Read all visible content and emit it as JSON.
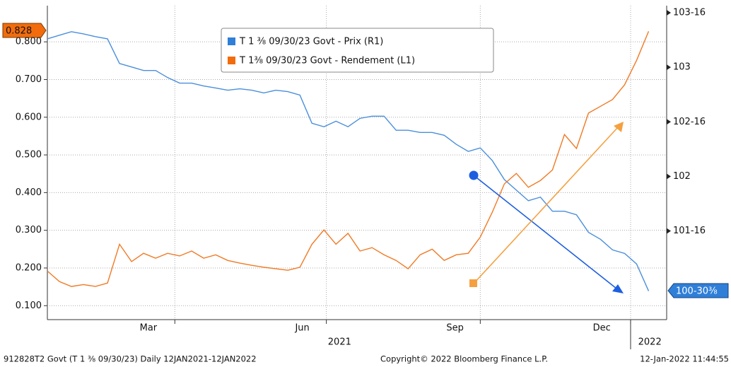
{
  "chart_data": {
    "type": "line",
    "legend": [
      "T 1 ⅜ 09/30/23 Govt - Prix (R1)",
      "T 1⅜ 09/30/23 Govt - Rendement (L1)"
    ],
    "series": [
      {
        "name": "T 1 ⅜ 09/30/23 Govt - Prix (R1)",
        "color": "#4a8fdc",
        "axis": "y2",
        "last_value_label": "100-30⅜",
        "values": [
          103.261,
          103.294,
          103.326,
          103.306,
          103.281,
          103.261,
          103.035,
          103.003,
          102.971,
          102.971,
          102.906,
          102.855,
          102.855,
          102.829,
          102.81,
          102.79,
          102.803,
          102.79,
          102.765,
          102.79,
          102.777,
          102.745,
          102.487,
          102.455,
          102.506,
          102.455,
          102.532,
          102.552,
          102.552,
          102.423,
          102.423,
          102.403,
          102.403,
          102.377,
          102.294,
          102.229,
          102.261,
          102.145,
          101.971,
          101.874,
          101.777,
          101.81,
          101.681,
          101.681,
          101.648,
          101.487,
          101.423,
          101.326,
          101.294,
          101.197,
          100.949
        ]
      },
      {
        "name": "T 1⅜ 09/30/23 Govt - Rendement (L1)",
        "color": "#f07a24",
        "axis": "y",
        "values": [
          0.192,
          0.164,
          0.151,
          0.156,
          0.151,
          0.16,
          0.263,
          0.217,
          0.239,
          0.226,
          0.239,
          0.232,
          0.245,
          0.226,
          0.235,
          0.22,
          0.213,
          0.207,
          0.202,
          0.198,
          0.194,
          0.202,
          0.263,
          0.301,
          0.263,
          0.292,
          0.245,
          0.254,
          0.235,
          0.22,
          0.198,
          0.235,
          0.25,
          0.22,
          0.235,
          0.239,
          0.282,
          0.348,
          0.423,
          0.451,
          0.414,
          0.432,
          0.46,
          0.554,
          0.517,
          0.611,
          0.629,
          0.647,
          0.686,
          0.751,
          0.828
        ]
      }
    ],
    "xlim": [
      0,
      51.5
    ],
    "xticks": [
      {
        "value": 8.4,
        "label": "Mar"
      },
      {
        "value": 21.2,
        "label": "Jun"
      },
      {
        "value": 33.9,
        "label": "Sep"
      },
      {
        "value": 46.1,
        "label": "Dec"
      }
    ],
    "xgrid": [
      10.6,
      23.2,
      36.0,
      48.5
    ],
    "year_labels": [
      {
        "value": 24.3,
        "label": "2021"
      },
      {
        "value": 50.1,
        "label": "2022"
      }
    ],
    "ylim": [
      0.063,
      0.896
    ],
    "yticks": [
      {
        "value": 0.1,
        "label": "0.100"
      },
      {
        "value": 0.2,
        "label": "0.200"
      },
      {
        "value": 0.3,
        "label": "0.300"
      },
      {
        "value": 0.4,
        "label": "0.400"
      },
      {
        "value": 0.5,
        "label": "0.500"
      },
      {
        "value": 0.6,
        "label": "0.600"
      },
      {
        "value": 0.7,
        "label": "0.700"
      },
      {
        "value": 0.8,
        "label": "0.800"
      }
    ],
    "y2lim": [
      100.687,
      103.565
    ],
    "y2ticks": [
      {
        "value": 101.5,
        "label": "101-16"
      },
      102,
      {
        "value": 102.5,
        "label": "102-16"
      },
      103,
      {
        "value": 103.5,
        "label": "103-16"
      }
    ],
    "grid": true,
    "footer": [
      "912828T2 Govt (T 1 ⅜ 09/30/23) Daily 12JAN2021-12JAN2022",
      "Copyright© 2022 Bloomberg Finance L.P.",
      "12-Jan-2022 11:44:55"
    ]
  }
}
